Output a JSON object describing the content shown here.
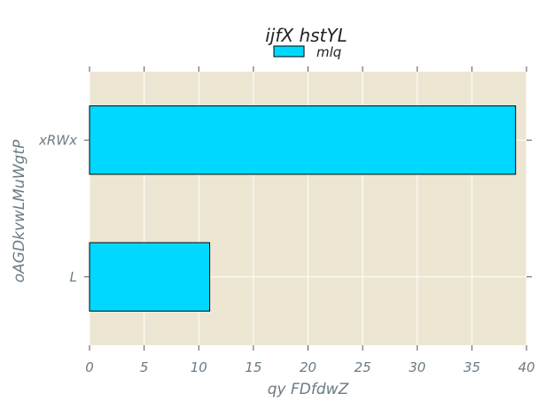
{
  "chart_data": {
    "type": "bar",
    "orientation": "horizontal",
    "title": "ijfX hstYL",
    "xlabel": "qy FDfdwZ",
    "ylabel": "oAGDkvwLMuWgtP",
    "categories": [
      "L",
      "xRWx"
    ],
    "series": [
      {
        "name": "mlq",
        "values": [
          11,
          39
        ]
      }
    ],
    "xlim": [
      0,
      40
    ],
    "xticks": [
      0,
      5,
      10,
      15,
      20,
      25,
      30,
      35,
      40
    ],
    "grid": true,
    "legend_position": "top-center"
  },
  "colors": {
    "plot_background": "#ede6d3",
    "bar_fill": "#00d8ff",
    "bar_edge": "#000000",
    "grid": "#ffffff",
    "tick_text": "#6a7b86"
  }
}
